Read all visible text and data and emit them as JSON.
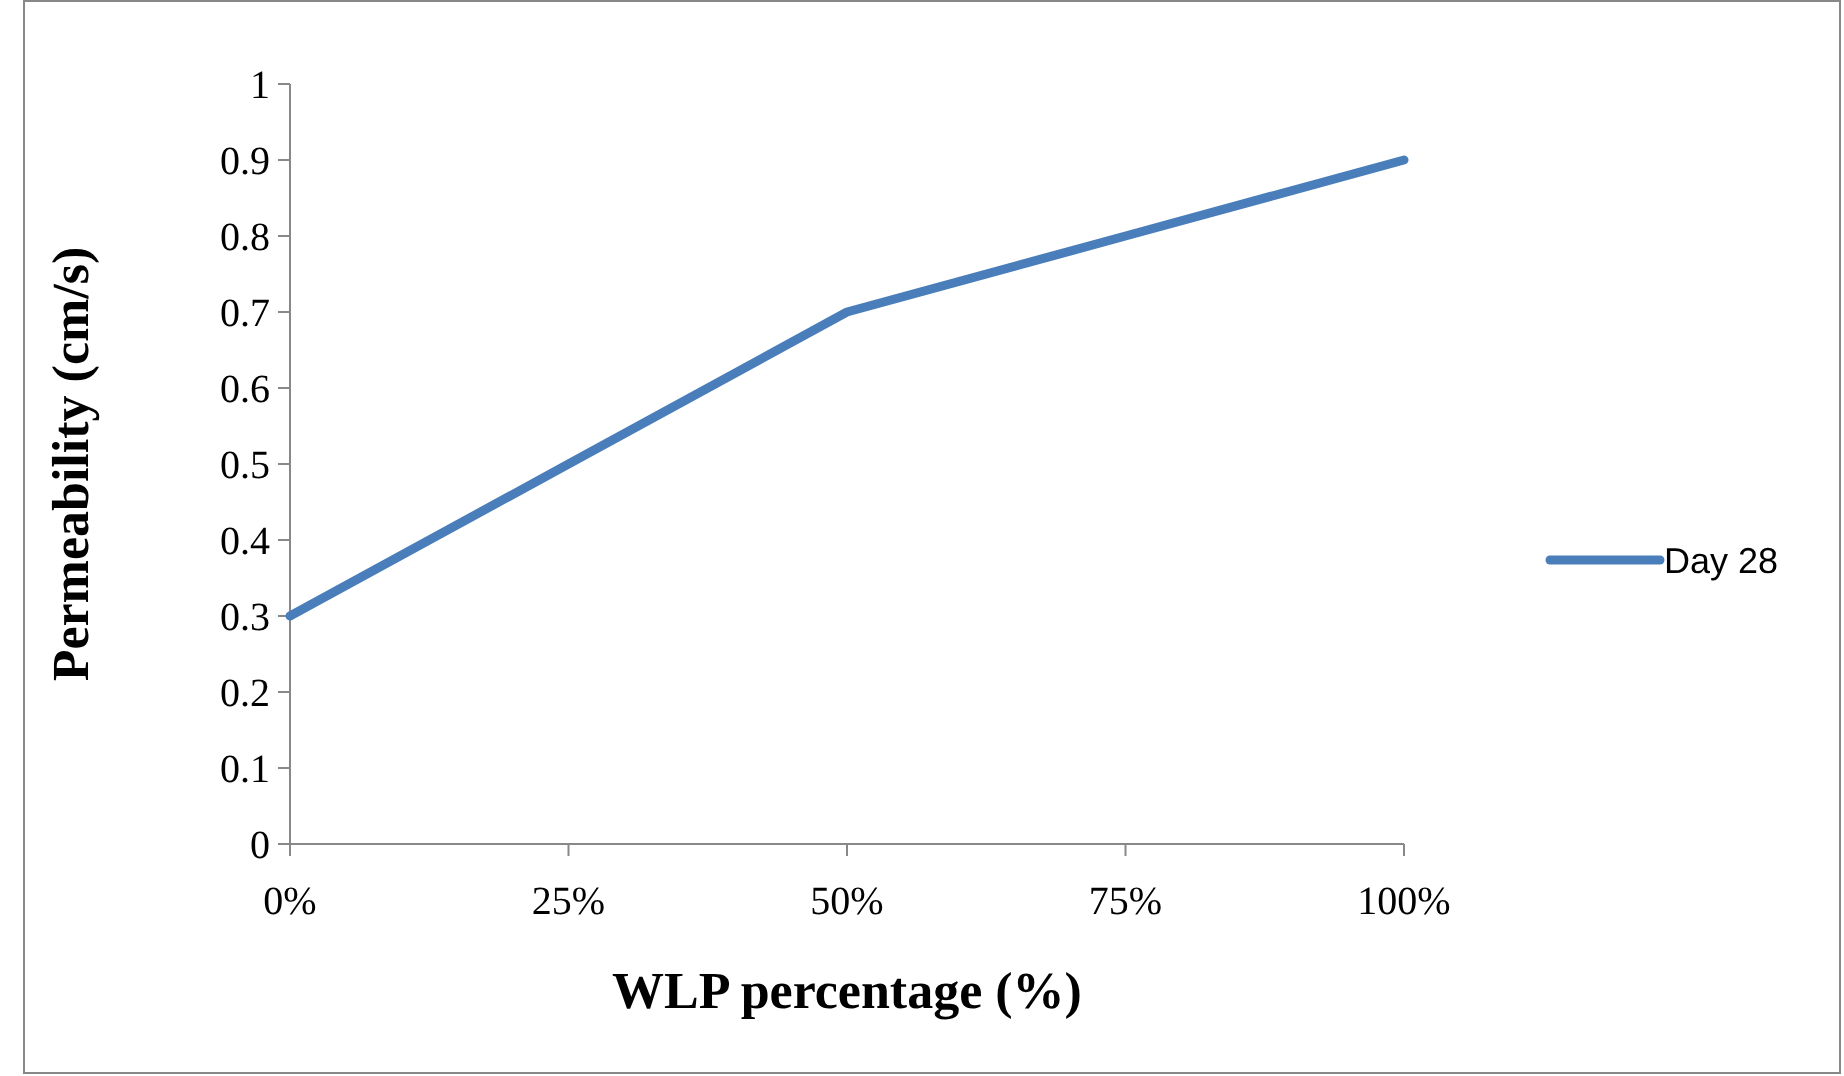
{
  "chart_data": {
    "type": "line",
    "xlabel": "WLP percentage (%)",
    "ylabel": "Permeability (cm/s)",
    "categories": [
      "0%",
      "25%",
      "50%",
      "75%",
      "100%"
    ],
    "series": [
      {
        "name": "Day 28",
        "color": "#4a7ebb",
        "values": [
          0.3,
          0.5,
          0.7,
          0.8,
          0.9
        ]
      }
    ],
    "ylim": [
      0,
      1
    ],
    "yticks": [
      0,
      0.1,
      0.2,
      0.3,
      0.4,
      0.5,
      0.6,
      0.7,
      0.8,
      0.9,
      1
    ],
    "grid": false,
    "legend": "right",
    "marker": "none",
    "line_style": "solid"
  }
}
